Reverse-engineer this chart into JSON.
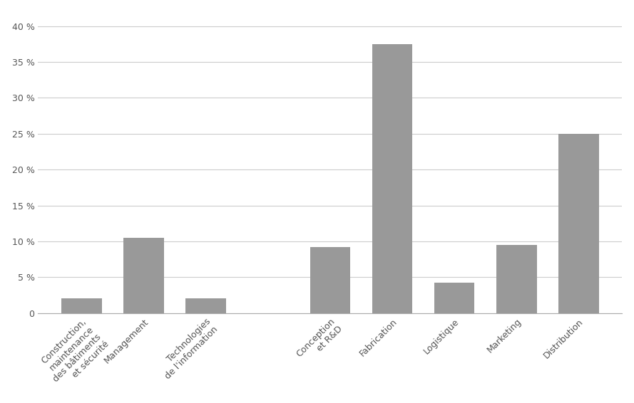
{
  "categories": [
    "Construction,\nmaintenance\ndes bâtiments\net sécurité",
    "Management",
    "Technologies\nde l'information",
    "Conception\net R&D",
    "Fabrication",
    "Logistique",
    "Marketing",
    "Distribution"
  ],
  "values": [
    2.0,
    10.5,
    2.0,
    9.2,
    37.5,
    4.2,
    9.5,
    25.0
  ],
  "x_positions": [
    0,
    1,
    2,
    4,
    5,
    6,
    7,
    8
  ],
  "bar_color": "#999999",
  "background_color": "#ffffff",
  "ylim": [
    0,
    42
  ],
  "yticks": [
    0,
    5,
    10,
    15,
    20,
    25,
    30,
    35,
    40
  ],
  "grid_color": "#cccccc",
  "tick_label_fontsize": 9,
  "bar_width": 0.65
}
